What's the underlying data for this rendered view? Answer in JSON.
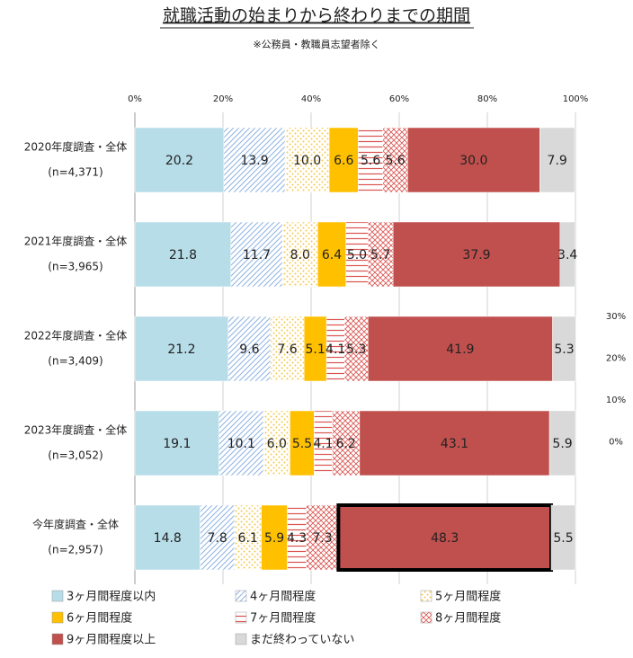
{
  "chart_data": {
    "type": "stacked-bar-horizontal",
    "title": "就職活動の始まりから終わりまでの期間",
    "subtitle": "※公務員・教職員志望者除く",
    "categories": [
      "2020年度調査・全体",
      "2021年度調査・全体",
      "2022年度調査・全体",
      "2023年度調査・全体",
      "今年度調査・全体"
    ],
    "sample_sizes": [
      "(n=4,371)",
      "(n=3,965)",
      "(n=3,409)",
      "(n=3,052)",
      "(n=2,957)"
    ],
    "xlim": [
      0,
      100
    ],
    "xticks": [
      {
        "value": 0,
        "label": "0%"
      },
      {
        "value": 20,
        "label": "20%"
      },
      {
        "value": 40,
        "label": "40%"
      },
      {
        "value": 60,
        "label": "60%"
      },
      {
        "value": 80,
        "label": "80%"
      },
      {
        "value": 100,
        "label": "100%"
      }
    ],
    "grid": true,
    "annotations": [
      "30%",
      "20%",
      "10%",
      "0%"
    ],
    "highlight": {
      "series": 6,
      "category": 4
    },
    "series": [
      {
        "name": "3ヶ月間程度以内",
        "color": "#b7dde8",
        "pattern": "solid",
        "label_color": "#222",
        "values": [
          20.2,
          21.8,
          21.2,
          19.1,
          14.8
        ],
        "value_labels": [
          "20.2",
          "21.8",
          "21.2",
          "19.1",
          "14.8"
        ]
      },
      {
        "name": "4ヶ月間程度",
        "color": "#8db3e2",
        "pattern": "diagonal",
        "label_color": "#222",
        "values": [
          13.9,
          11.7,
          9.6,
          10.1,
          7.8
        ],
        "value_labels": [
          "13.9",
          "11.7",
          "9.6",
          "10.1",
          "7.8"
        ]
      },
      {
        "name": "5ヶ月間程度",
        "color": "#f2c94c",
        "pattern": "dots",
        "label_color": "#222",
        "values": [
          10.0,
          8.0,
          7.6,
          6.0,
          6.1
        ],
        "value_labels": [
          "10.0",
          "8.0",
          "7.6",
          "6.0",
          "6.1"
        ]
      },
      {
        "name": "6ヶ月間程度",
        "color": "#ffc000",
        "pattern": "solid",
        "label_color": "#222",
        "values": [
          6.6,
          6.4,
          5.1,
          5.5,
          5.9
        ],
        "value_labels": [
          "6.6",
          "6.4",
          "5.1",
          "5.5",
          "5.9"
        ]
      },
      {
        "name": "7ヶ月間程度",
        "color": "#d9534f",
        "pattern": "horizontal",
        "label_color": "#222",
        "values": [
          5.6,
          5.0,
          4.1,
          4.1,
          4.3
        ],
        "value_labels": [
          "5.6",
          "5.0",
          "4.1",
          "4.1",
          "4.3"
        ]
      },
      {
        "name": "8ヶ月間程度",
        "color": "#d9534f",
        "pattern": "crosshatch",
        "label_color": "#222",
        "values": [
          5.6,
          5.7,
          5.3,
          6.2,
          7.3
        ],
        "value_labels": [
          "5.6",
          "5.7",
          "5.3",
          "6.2",
          "7.3"
        ]
      },
      {
        "name": "9ヶ月間程度以上",
        "color": "#c0504d",
        "pattern": "solid",
        "label_color": "#ffffff",
        "values": [
          30.0,
          37.9,
          41.9,
          43.1,
          48.3
        ],
        "value_labels": [
          "30.0",
          "37.9",
          "41.9",
          "43.1",
          "48.3"
        ]
      },
      {
        "name": "まだ終わっていない",
        "color": "#d9d9d9",
        "pattern": "solid",
        "label_color": "#222",
        "values": [
          7.9,
          3.4,
          5.3,
          5.9,
          5.5
        ],
        "value_labels": [
          "7.9",
          "3.4",
          "5.3",
          "5.9",
          "5.5"
        ]
      }
    ]
  }
}
